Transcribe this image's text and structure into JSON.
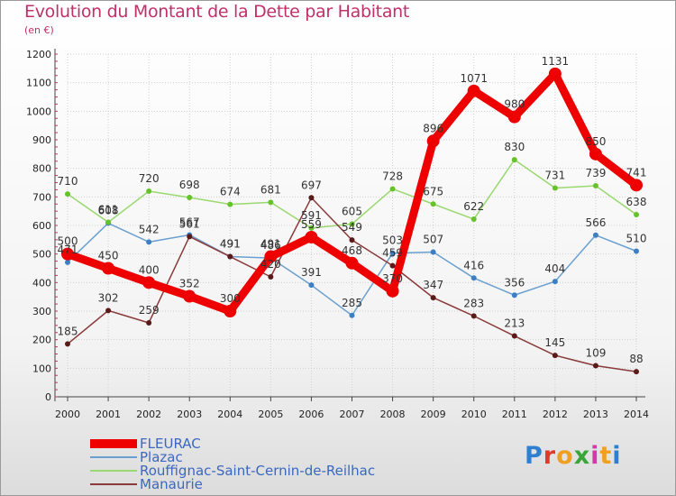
{
  "header": {
    "title": "Evolution du Montant de la Dette par Habitant",
    "subtitle": "(en €)"
  },
  "logo": {
    "text": "Proxiti",
    "letter_colors": [
      "#2f7fd0",
      "#e03a2a",
      "#f0a020",
      "#3aa63a",
      "#d33aa8",
      "#f0a020",
      "#2f7fd0"
    ]
  },
  "chart_data": {
    "type": "line",
    "title": "Evolution du Montant de la Dette par Habitant",
    "subtitle": "(en €)",
    "x": [
      "2000",
      "2001",
      "2002",
      "2003",
      "2004",
      "2005",
      "2006",
      "2007",
      "2008",
      "2009",
      "2010",
      "2011",
      "2012",
      "2013",
      "2014"
    ],
    "ylim": [
      0,
      1200
    ],
    "yticks": [
      0,
      100,
      200,
      300,
      400,
      500,
      600,
      700,
      800,
      900,
      1000,
      1100,
      1200
    ],
    "grid": true,
    "legend_position": "bottom-left",
    "series": [
      {
        "name": "FLEURAC",
        "color": "#ee0000",
        "marker_color": "#ee0000",
        "emphasis": true,
        "values": [
          500,
          450,
          400,
          352,
          300,
          491,
          559,
          468,
          370,
          896,
          1071,
          980,
          1131,
          850,
          741
        ]
      },
      {
        "name": "Plazac",
        "color": "#6a9fd0",
        "marker_color": "#3d7fc4",
        "emphasis": false,
        "values": [
          471,
          608,
          542,
          567,
          491,
          486,
          391,
          285,
          503,
          507,
          416,
          356,
          404,
          566,
          510
        ]
      },
      {
        "name": "Rouffignac-Saint-Cernin-de-Reilhac",
        "color": "#9ad870",
        "marker_color": "#66c22a",
        "emphasis": false,
        "values": [
          710,
          611,
          720,
          698,
          674,
          681,
          591,
          605,
          728,
          675,
          622,
          830,
          731,
          739,
          638
        ]
      },
      {
        "name": "Manaurie",
        "color": "#8a3a3a",
        "marker_color": "#5a1a1a",
        "emphasis": false,
        "values": [
          185,
          302,
          259,
          561,
          491,
          420,
          697,
          549,
          459,
          347,
          283,
          213,
          145,
          109,
          88
        ]
      }
    ]
  }
}
